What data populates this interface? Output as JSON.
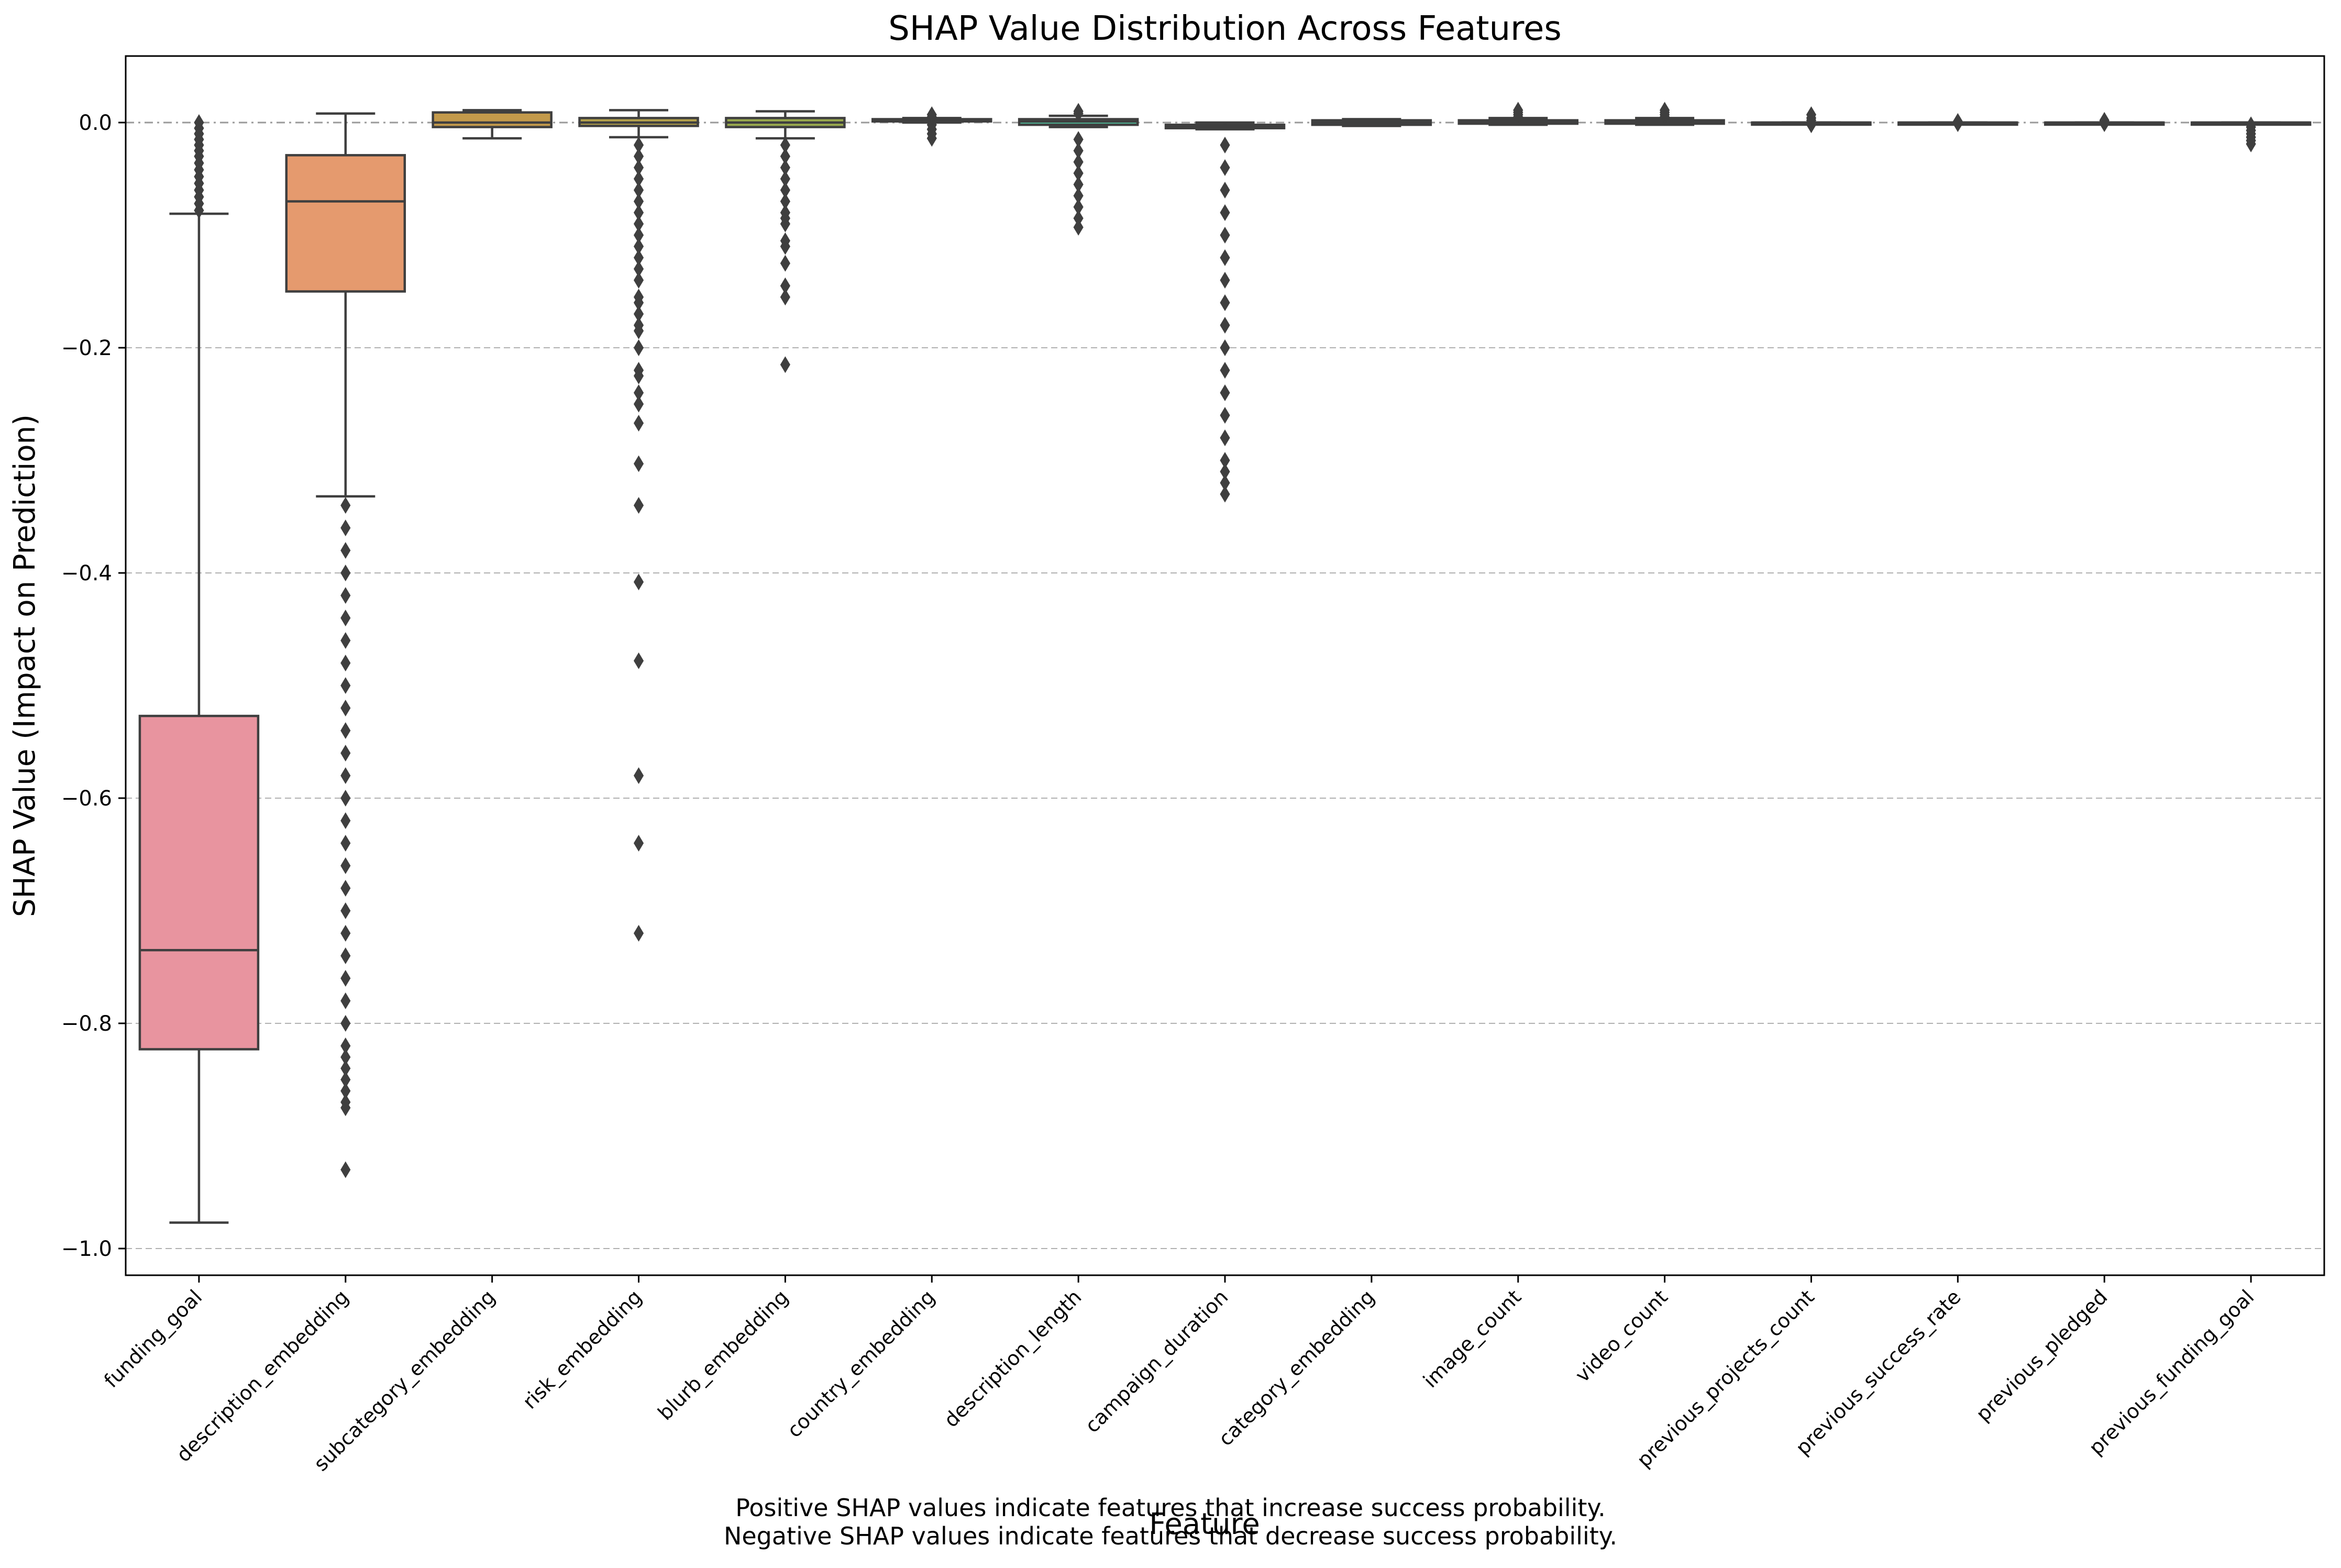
{
  "chart_data": {
    "type": "box",
    "title": "SHAP Value Distribution Across Features",
    "xlabel": "Feature",
    "ylabel": "SHAP Value (Impact on Prediction)",
    "ylim": [
      -1.03,
      0.06
    ],
    "yticks": [
      0.0,
      -0.2,
      -0.4,
      -0.6,
      -0.8,
      -1.0
    ],
    "ytick_labels": [
      "0.0",
      "−0.2",
      "−0.4",
      "−0.6",
      "−0.8",
      "−1.0"
    ],
    "grid": "horizontal dashed",
    "categories": [
      "funding_goal",
      "description_embedding",
      "subcategory_embedding",
      "risk_embedding",
      "blurb_embedding",
      "country_embedding",
      "description_length",
      "campaign_duration",
      "category_embedding",
      "image_count",
      "video_count",
      "previous_projects_count",
      "previous_success_rate",
      "previous_pledged",
      "previous_funding_goal"
    ],
    "colors": [
      "#e8949f",
      "#e59a6e",
      "#c39a4b",
      "#b5a24b",
      "#9aaa4d",
      "#5bb35b",
      "#4fb495",
      "#4cb1ab",
      "#52b1c2",
      "#5aa6d6",
      "#8f96e6",
      "#b889e6",
      "#db7ed8",
      "#e683b5",
      "#ea8b9a"
    ],
    "boxes": [
      {
        "q1": -0.823,
        "median": -0.735,
        "q3": -0.527,
        "whisker_low": -0.977,
        "whisker_high": -0.081,
        "outliers_min": [],
        "outliers_max": [],
        "outliers": [
          -0.078,
          -0.072,
          -0.066,
          -0.06,
          -0.054,
          -0.048,
          -0.042,
          -0.036,
          -0.03,
          -0.025,
          -0.02,
          -0.015,
          -0.01,
          -0.005,
          0.0
        ]
      },
      {
        "q1": -0.15,
        "median": -0.07,
        "q3": -0.029,
        "whisker_low": -0.332,
        "whisker_high": 0.008,
        "outliers": [
          -0.93,
          -0.875,
          -0.87,
          -0.86,
          -0.85,
          -0.84,
          -0.83,
          -0.82,
          -0.8,
          -0.78,
          -0.76,
          -0.74,
          -0.72,
          -0.7,
          -0.68,
          -0.66,
          -0.64,
          -0.62,
          -0.6,
          -0.58,
          -0.56,
          -0.54,
          -0.52,
          -0.5,
          -0.48,
          -0.46,
          -0.44,
          -0.42,
          -0.4,
          -0.38,
          -0.36,
          -0.34
        ]
      },
      {
        "q1": -0.004,
        "median": 0.0,
        "q3": 0.009,
        "whisker_low": -0.014,
        "whisker_high": 0.011,
        "outliers": []
      },
      {
        "q1": -0.003,
        "median": 0.0,
        "q3": 0.004,
        "whisker_low": -0.013,
        "whisker_high": 0.011,
        "outliers": [
          -0.72,
          -0.64,
          -0.58,
          -0.478,
          -0.408,
          -0.34,
          -0.303,
          -0.267,
          -0.25,
          -0.24,
          -0.225,
          -0.22,
          -0.2,
          -0.185,
          -0.18,
          -0.17,
          -0.16,
          -0.155,
          -0.14,
          -0.13,
          -0.12,
          -0.11,
          -0.1,
          -0.09,
          -0.08,
          -0.07,
          -0.06,
          -0.05,
          -0.04,
          -0.03,
          -0.02
        ]
      },
      {
        "q1": -0.004,
        "median": 0.0,
        "q3": 0.004,
        "whisker_low": -0.014,
        "whisker_high": 0.01,
        "outliers": [
          -0.215,
          -0.155,
          -0.145,
          -0.125,
          -0.11,
          -0.105,
          -0.09,
          -0.085,
          -0.08,
          -0.07,
          -0.06,
          -0.05,
          -0.04,
          -0.03,
          -0.02
        ]
      },
      {
        "q1": 0.001,
        "median": 0.002,
        "q3": 0.003,
        "whisker_low": 0.0,
        "whisker_high": 0.004,
        "outliers": [
          -0.014,
          -0.01,
          -0.006,
          -0.002,
          0.005,
          0.007
        ]
      },
      {
        "q1": -0.002,
        "median": 0.001,
        "q3": 0.003,
        "whisker_low": -0.004,
        "whisker_high": 0.006,
        "outliers": [
          -0.093,
          -0.085,
          -0.075,
          -0.065,
          -0.055,
          -0.045,
          -0.035,
          -0.025,
          -0.015,
          0.008,
          0.01
        ]
      },
      {
        "q1": -0.005,
        "median": -0.003,
        "q3": -0.002,
        "whisker_low": -0.006,
        "whisker_high": 0.0,
        "outliers": [
          -0.33,
          -0.32,
          -0.31,
          -0.3,
          -0.28,
          -0.26,
          -0.24,
          -0.22,
          -0.2,
          -0.18,
          -0.16,
          -0.14,
          -0.12,
          -0.1,
          -0.08,
          -0.06,
          -0.04,
          -0.02
        ]
      },
      {
        "q1": -0.002,
        "median": 0.0,
        "q3": 0.002,
        "whisker_low": -0.003,
        "whisker_high": 0.003,
        "outliers": []
      },
      {
        "q1": -0.001,
        "median": 0.0,
        "q3": 0.002,
        "whisker_low": -0.002,
        "whisker_high": 0.004,
        "outliers": [
          0.005,
          0.007,
          0.009,
          0.011
        ]
      },
      {
        "q1": -0.001,
        "median": 0.0,
        "q3": 0.002,
        "whisker_low": -0.002,
        "whisker_high": 0.004,
        "outliers": [
          0.005,
          0.007,
          0.009,
          0.011
        ]
      },
      {
        "q1": 0.0,
        "median": 0.0,
        "q3": 0.0,
        "whisker_low": 0.0,
        "whisker_high": 0.0,
        "outliers": [
          -0.002,
          0.002,
          0.004,
          0.007
        ]
      },
      {
        "q1": 0.0,
        "median": 0.0,
        "q3": 0.0,
        "whisker_low": 0.0,
        "whisker_high": 0.0,
        "outliers": [
          -0.001,
          0.001
        ]
      },
      {
        "q1": 0.0,
        "median": 0.0,
        "q3": 0.0,
        "whisker_low": 0.0,
        "whisker_high": 0.0,
        "outliers": [
          -0.001,
          0.001,
          0.002
        ]
      },
      {
        "q1": 0.0,
        "median": 0.0,
        "q3": 0.0,
        "whisker_low": 0.0,
        "whisker_high": 0.0,
        "outliers": [
          -0.019,
          -0.016,
          -0.013,
          -0.01,
          -0.007,
          -0.004,
          -0.002
        ]
      }
    ]
  },
  "notes": {
    "line1": "Positive SHAP values indicate features that increase success probability.",
    "line2": "Negative SHAP values indicate features that decrease success probability."
  }
}
